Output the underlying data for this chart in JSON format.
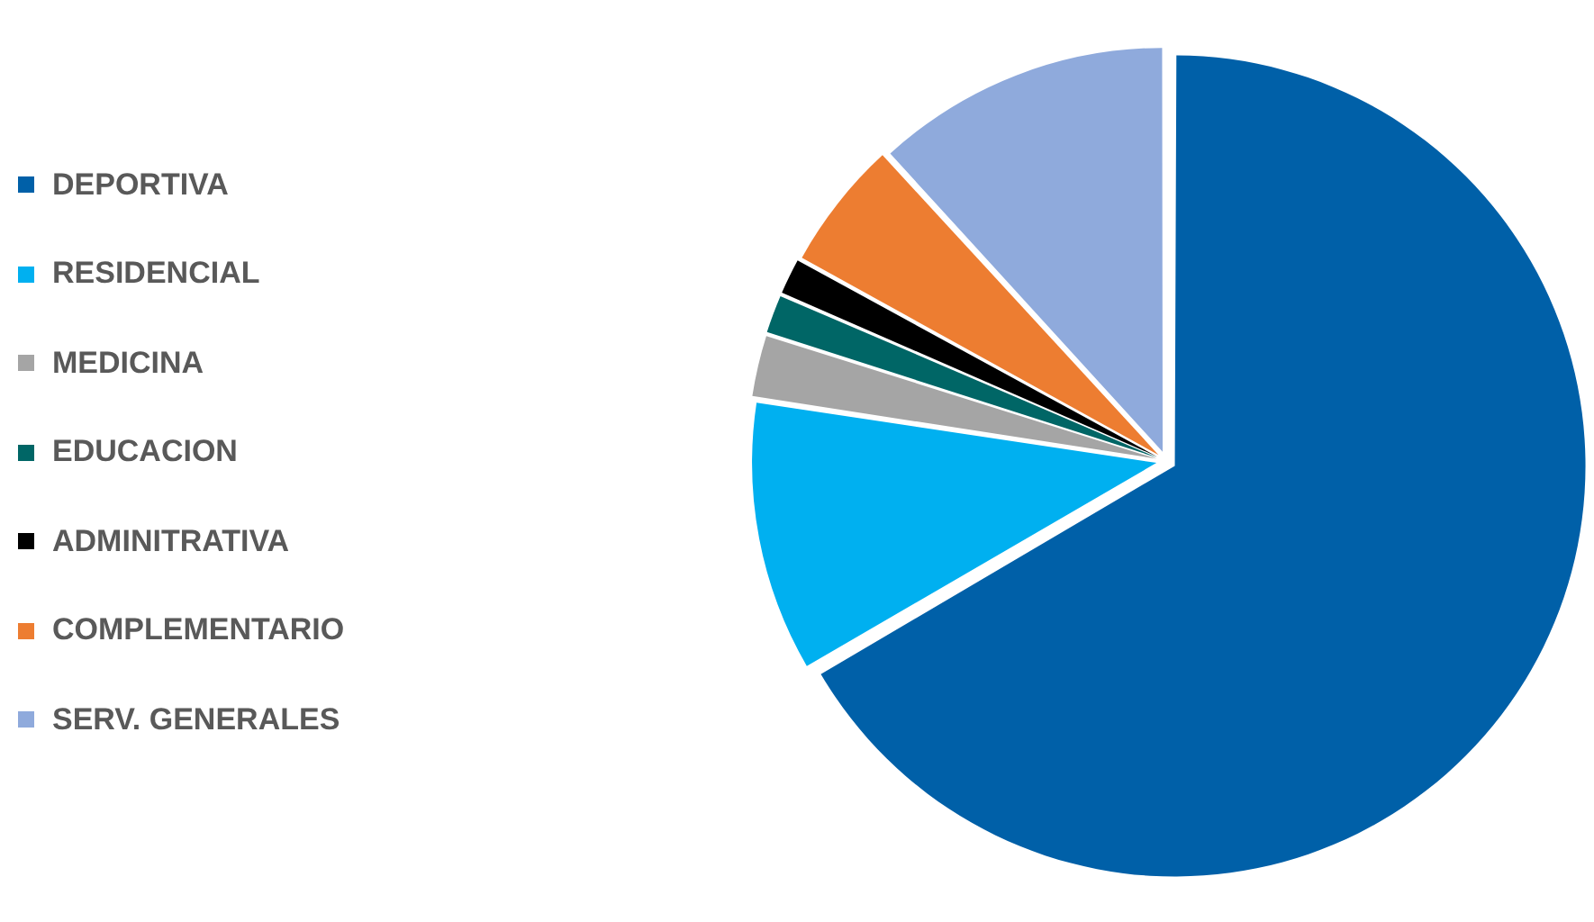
{
  "chart_data": {
    "type": "pie",
    "categories": [
      "DEPORTIVA",
      "RESIDENCIAL",
      "MEDICINA",
      "EDUCACION",
      "ADMINITRATIVA",
      "COMPLEMENTARIO",
      "SERV. GENERALES"
    ],
    "values": [
      66.6,
      10.8,
      2.5,
      1.6,
      1.5,
      5.2,
      11.8
    ],
    "colors": [
      "#0060a8",
      "#00b0f0",
      "#a5a5a5",
      "#006666",
      "#000000",
      "#ed7d31",
      "#8faadc"
    ],
    "legend": "left"
  }
}
